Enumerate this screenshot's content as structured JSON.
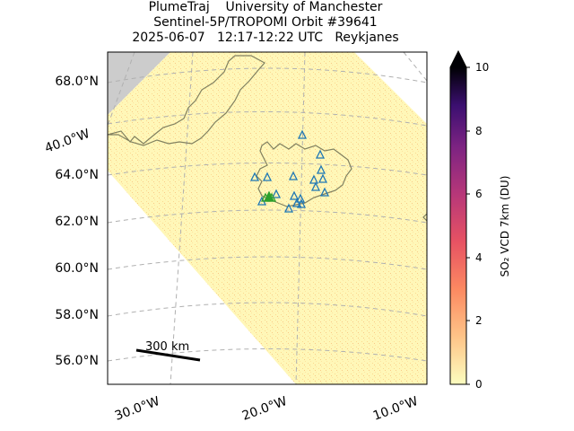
{
  "title": {
    "line1": "PlumeTraj    University of Manchester",
    "line2": "Sentinel-5P/TROPOMI Orbit #39641",
    "line3": "2025-06-07   12:17-12:22 UTC   Reykjanes"
  },
  "map": {
    "lat_labels": [
      "68.0°N",
      "64.0°N",
      "62.0°N",
      "60.0°N",
      "58.0°N",
      "56.0°N"
    ],
    "lon_labels": [
      "30.0°W",
      "20.0°W",
      "10.0°W"
    ],
    "lon_label_left": "40.0°W",
    "scale_bar_label": "300 km",
    "colors": {
      "swath": "#fff7b8",
      "no_data": "#cccccc",
      "coastline": "#808060",
      "volcano_markers": "#1f77b4",
      "source_marker": "#2ca02c",
      "gridlines": "#b0b0b0"
    }
  },
  "colorbar": {
    "label": "SO₂ VCD 7km (DU)",
    "ticks": [
      "0",
      "2",
      "4",
      "6",
      "8",
      "10"
    ],
    "min": 0,
    "max": 10,
    "colormap": "magma_r",
    "extend": "max"
  }
}
